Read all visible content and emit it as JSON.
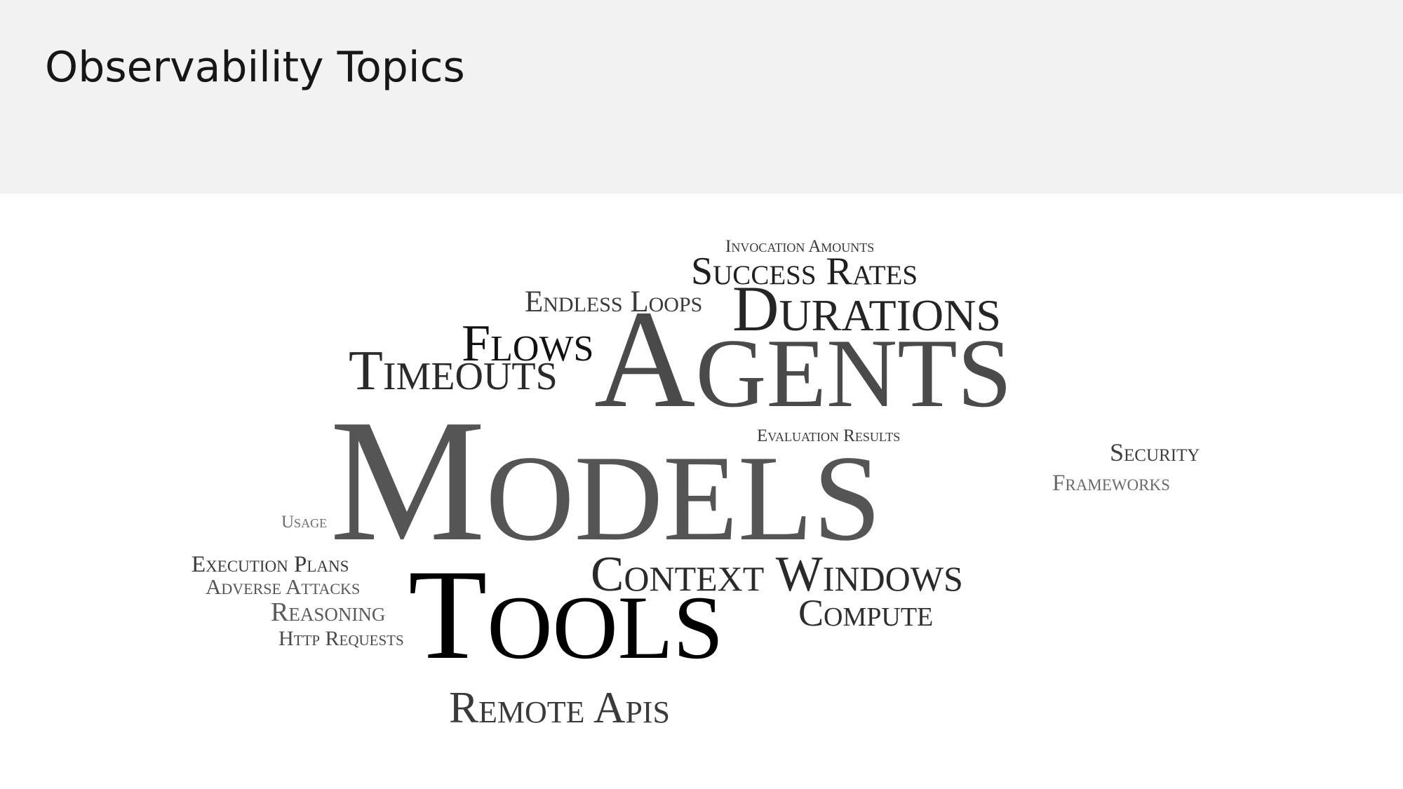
{
  "header": {
    "title": "Observability Topics"
  },
  "word_cloud": {
    "words": [
      {
        "key": "invocation-amounts",
        "text": "Invocation Amounts",
        "color": "#3a3a3a"
      },
      {
        "key": "success-rates",
        "text": "Success Rates",
        "color": "#1f1f1f"
      },
      {
        "key": "endless-loops",
        "text": "Endless Loops",
        "color": "#3a3a3a"
      },
      {
        "key": "durations",
        "text": "Durations",
        "color": "#252525"
      },
      {
        "key": "flows",
        "text": "Flows",
        "color": "#111111"
      },
      {
        "key": "timeouts",
        "text": "Timeouts",
        "color": "#2a2a2a"
      },
      {
        "key": "agents",
        "text": "Agents",
        "color": "#4a4a4a"
      },
      {
        "key": "evaluation-results",
        "text": "Evaluation Results",
        "color": "#3a3a3a"
      },
      {
        "key": "security",
        "text": "Security",
        "color": "#3e3e3e"
      },
      {
        "key": "frameworks",
        "text": "Frameworks",
        "color": "#6a6a6a"
      },
      {
        "key": "models",
        "text": "Models",
        "color": "#555555"
      },
      {
        "key": "usage",
        "text": "Usage",
        "color": "#6e6e6e"
      },
      {
        "key": "execution-plans",
        "text": "Execution Plans",
        "color": "#3a3a3a"
      },
      {
        "key": "adverse-attacks",
        "text": "Adverse Attacks",
        "color": "#555555"
      },
      {
        "key": "context-windows",
        "text": "Context Windows",
        "color": "#2a2a2a"
      },
      {
        "key": "reasoning",
        "text": "Reasoning",
        "color": "#5a5a5a"
      },
      {
        "key": "compute",
        "text": "Compute",
        "color": "#2e2e2e"
      },
      {
        "key": "http-requests",
        "text": "Http Requests",
        "color": "#4a4a4a"
      },
      {
        "key": "tools",
        "text": "Tools",
        "color": "#000000"
      },
      {
        "key": "remote-apis",
        "text": "Remote Apis",
        "color": "#3a3a3a"
      }
    ]
  }
}
